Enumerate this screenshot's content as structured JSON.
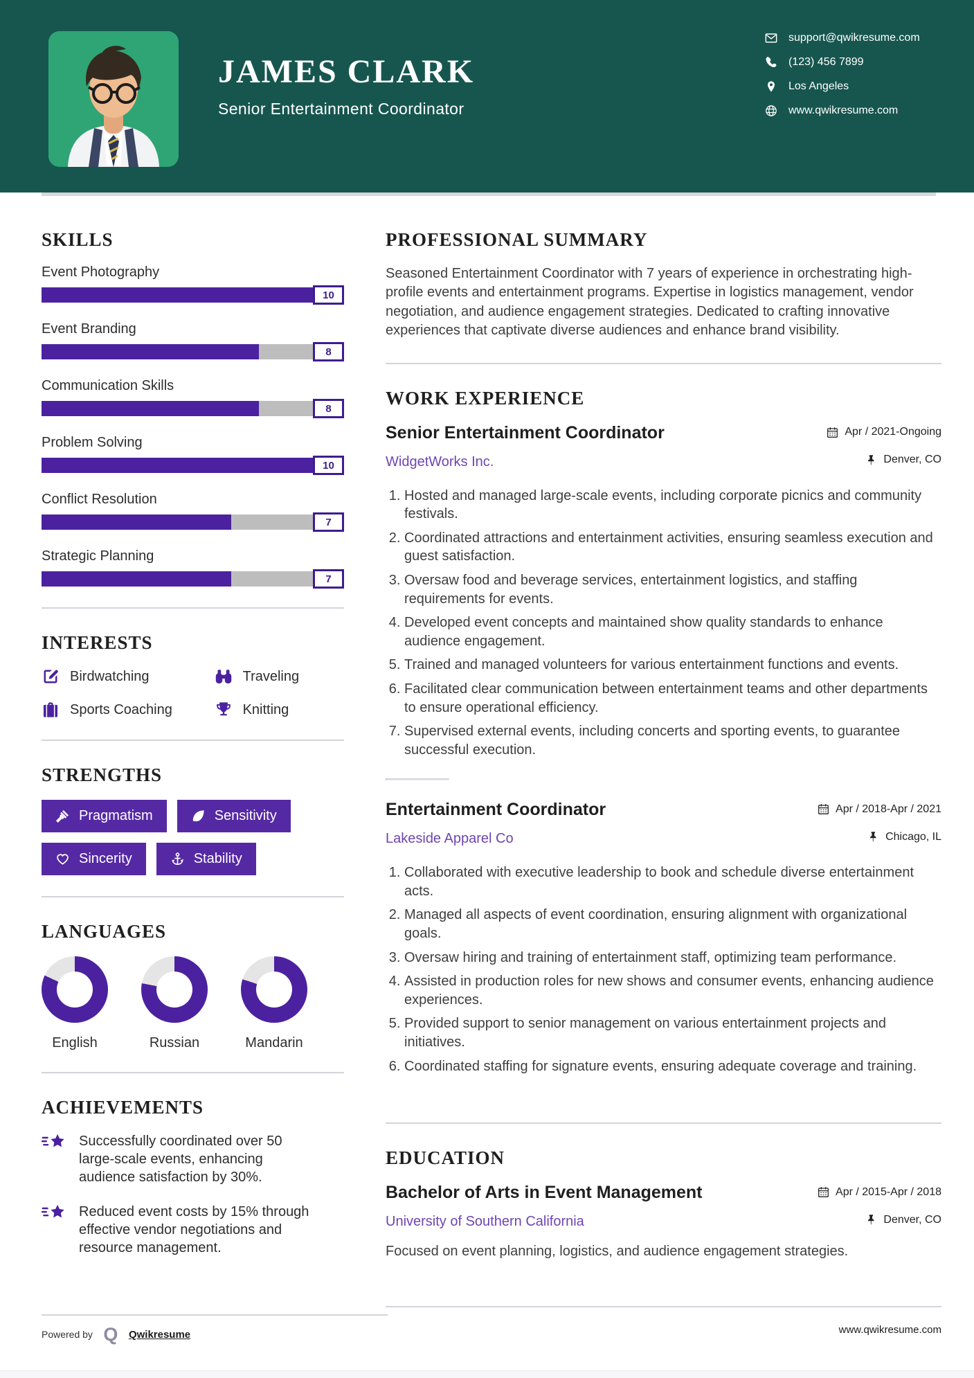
{
  "colors": {
    "teal": "#17564F",
    "purple": "#4B21A0",
    "chip_purple": "#5629A4",
    "link_purple": "#6E45B2",
    "track_gray": "#BDBDBD",
    "donut_gray": "#E5E5E5"
  },
  "header": {
    "name": "JAMES CLARK",
    "title": "Senior Entertainment Coordinator",
    "contacts": [
      {
        "icon": "envelope-icon",
        "text": "support@qwikresume.com",
        "interactable": true
      },
      {
        "icon": "phone-icon",
        "text": "(123) 456 7899",
        "interactable": false
      },
      {
        "icon": "pin-icon",
        "text": "Los Angeles",
        "interactable": false
      },
      {
        "icon": "globe-icon",
        "text": "www.qwikresume.com",
        "interactable": true
      }
    ]
  },
  "sidebar": {
    "skills": {
      "heading": "SKILLS",
      "max": 10,
      "items": [
        {
          "label": "Event Photography",
          "value": 10
        },
        {
          "label": "Event Branding",
          "value": 8
        },
        {
          "label": "Communication Skills",
          "value": 8
        },
        {
          "label": "Problem Solving",
          "value": 10
        },
        {
          "label": "Conflict Resolution",
          "value": 7
        },
        {
          "label": "Strategic Planning",
          "value": 7
        }
      ]
    },
    "interests": {
      "heading": "INTERESTS",
      "items": [
        {
          "icon": "pencil-icon",
          "label": "Birdwatching"
        },
        {
          "icon": "binoculars-icon",
          "label": "Traveling"
        },
        {
          "icon": "briefcase-icon",
          "label": "Sports Coaching"
        },
        {
          "icon": "trophy-icon",
          "label": "Knitting"
        }
      ]
    },
    "strengths": {
      "heading": "STRENGTHS",
      "items": [
        {
          "icon": "gavel-icon",
          "label": "Pragmatism"
        },
        {
          "icon": "leaf-icon",
          "label": "Sensitivity"
        },
        {
          "icon": "heart-icon",
          "label": "Sincerity"
        },
        {
          "icon": "anchor-icon",
          "label": "Stability"
        }
      ]
    },
    "languages": {
      "heading": "LANGUAGES",
      "items": [
        {
          "label": "English",
          "percent": 82
        },
        {
          "label": "Russian",
          "percent": 78
        },
        {
          "label": "Mandarin",
          "percent": 80
        }
      ]
    },
    "achievements": {
      "heading": "ACHIEVEMENTS",
      "icon": "shooting-star-icon",
      "items": [
        "Successfully coordinated over 50 large-scale events, enhancing audience satisfaction by 30%.",
        "Reduced event costs by 15% through effective vendor negotiations and resource management."
      ]
    }
  },
  "main": {
    "summary": {
      "heading": "PROFESSIONAL SUMMARY",
      "text": "Seasoned Entertainment Coordinator with 7 years of experience in orchestrating high-profile events and entertainment programs. Expertise in logistics management, vendor negotiation, and audience engagement strategies. Dedicated to crafting innovative experiences that captivate diverse audiences and enhance brand visibility."
    },
    "work": {
      "heading": "WORK EXPERIENCE",
      "jobs": [
        {
          "title": "Senior Entertainment Coordinator",
          "company": "WidgetWorks Inc.",
          "dates": "Apr / 2021-Ongoing",
          "location": "Denver, CO",
          "bullets": [
            "Hosted and managed large-scale events, including corporate picnics and community festivals.",
            "Coordinated attractions and entertainment activities, ensuring seamless execution and guest satisfaction.",
            "Oversaw food and beverage services, entertainment logistics, and staffing requirements for events.",
            "Developed event concepts and maintained show quality standards to enhance audience engagement.",
            "Trained and managed volunteers for various entertainment functions and events.",
            "Facilitated clear communication between entertainment teams and other departments to ensure operational efficiency.",
            "Supervised external events, including concerts and sporting events, to guarantee successful execution."
          ]
        },
        {
          "title": "Entertainment Coordinator",
          "company": "Lakeside Apparel Co",
          "dates": "Apr / 2018-Apr / 2021",
          "location": "Chicago, IL",
          "bullets": [
            "Collaborated with executive leadership to book and schedule diverse entertainment acts.",
            "Managed all aspects of event coordination, ensuring alignment with organizational goals.",
            "Oversaw hiring and training of entertainment staff, optimizing team performance.",
            "Assisted in production roles for new shows and consumer events, enhancing audience experiences.",
            "Provided support to senior management on various entertainment projects and initiatives.",
            "Coordinated staffing for signature events, ensuring adequate coverage and training."
          ]
        }
      ]
    },
    "education": {
      "heading": "EDUCATION",
      "degree": "Bachelor of Arts in Event Management",
      "school": "University of Southern California",
      "dates": "Apr / 2015-Apr / 2018",
      "location": "Denver, CO",
      "description": "Focused on event planning, logistics, and audience engagement strategies."
    }
  },
  "footer": {
    "powered_by": "Powered by",
    "logo_letter": "Q",
    "brand": "Qwikresume",
    "website": "www.qwikresume.com"
  }
}
